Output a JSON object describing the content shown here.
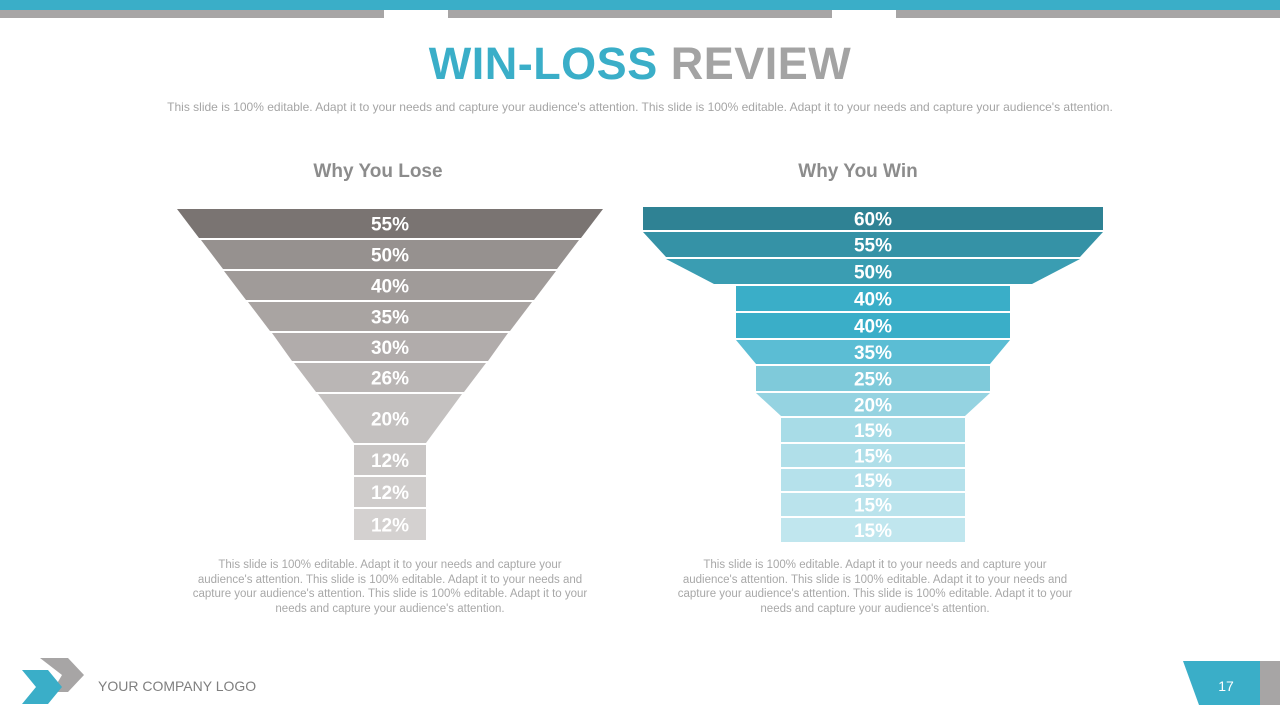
{
  "slide": {
    "title_part1": "WIN-LOSS",
    "title_part2": "REVIEW",
    "subtitle": "This slide is 100% editable. Adapt it to your needs and capture your audience's attention. This slide is 100% editable. Adapt it to your needs and capture your audience's attention.",
    "logo_text": "YOUR COMPANY LOGO",
    "page_number": "17"
  },
  "colors": {
    "accent_blue": "#3aaec8",
    "grey_title": "#a3a3a3"
  },
  "chart_data": [
    {
      "type": "funnel",
      "title": "Why You Lose",
      "values": [
        "55%",
        "50%",
        "40%",
        "35%",
        "30%",
        "26%",
        "20%",
        "12%",
        "12%",
        "12%"
      ],
      "description": "This slide is 100% editable. Adapt it to your needs and capture your audience's attention. This slide is 100% editable. Adapt it to your needs and capture your audience's attention. This slide is 100% editable. Adapt it to your needs and capture your audience's attention."
    },
    {
      "type": "funnel",
      "title": "Why You Win",
      "values": [
        "60%",
        "55%",
        "50%",
        "40%",
        "40%",
        "35%",
        "25%",
        "20%",
        "15%",
        "15%",
        "15%",
        "15%",
        "15%"
      ],
      "description": "This slide is 100% editable. Adapt it to your needs and capture your audience's attention. This slide is 100% editable. Adapt it to your needs and capture your audience's attention. This slide is 100% editable. Adapt it to your needs and capture your audience's attention."
    }
  ]
}
